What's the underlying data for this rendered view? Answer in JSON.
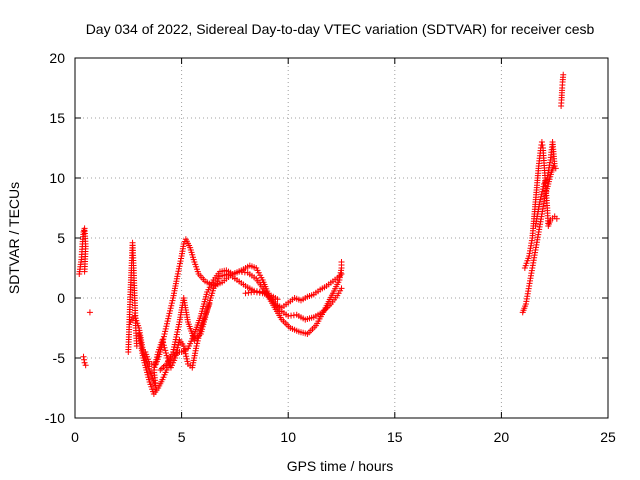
{
  "chart_data": {
    "type": "scatter",
    "title": "Day 034 of 2022, Sidereal Day-to-day VTEC variation (SDTVAR) for receiver cesb",
    "xlabel": "GPS time / hours",
    "ylabel": "SDTVAR / TECUs",
    "xlim": [
      0,
      25
    ],
    "ylim": [
      -10,
      20
    ],
    "xticks": [
      0,
      5,
      10,
      15,
      20,
      25
    ],
    "yticks": [
      -10,
      -5,
      0,
      5,
      10,
      15,
      20
    ],
    "xtick_labels": [
      "0",
      "5",
      "10",
      "15",
      "20",
      "25"
    ],
    "ytick_labels": [
      "-10",
      "-5",
      "0",
      "5",
      "10",
      "15",
      "20"
    ],
    "grid": true,
    "marker": "+",
    "color": "#ff0000",
    "series": [
      {
        "name": "SDTVAR",
        "traces": [
          [
            [
              0.2,
              2.0
            ],
            [
              0.3,
              3.2
            ],
            [
              0.35,
              4.5
            ],
            [
              0.4,
              5.5
            ],
            [
              0.45,
              5.8
            ],
            [
              0.5,
              4.3
            ],
            [
              0.45,
              2.2
            ]
          ],
          [
            [
              0.4,
              -4.9
            ],
            [
              0.45,
              -5.4
            ],
            [
              0.5,
              -5.6
            ]
          ],
          [
            [
              0.7,
              -1.2
            ]
          ],
          [
            [
              2.5,
              -4.5
            ],
            [
              2.55,
              -2.0
            ],
            [
              2.6,
              0.5
            ],
            [
              2.65,
              2.5
            ],
            [
              2.7,
              4.6
            ],
            [
              2.75,
              2.5
            ],
            [
              2.8,
              0.0
            ],
            [
              2.85,
              -2.5
            ],
            [
              2.9,
              -4.0
            ]
          ],
          [
            [
              2.6,
              -2.0
            ],
            [
              2.8,
              -1.5
            ],
            [
              3.0,
              -2.5
            ],
            [
              3.2,
              -4.5
            ],
            [
              3.4,
              -5.5
            ],
            [
              3.6,
              -6.5
            ],
            [
              3.8,
              -7.5
            ],
            [
              3.7,
              -6.0
            ],
            [
              3.9,
              -4.5
            ],
            [
              4.1,
              -3.5
            ],
            [
              4.3,
              -4.8
            ],
            [
              4.5,
              -5.8
            ],
            [
              4.7,
              -5.0
            ],
            [
              4.9,
              -3.5
            ],
            [
              5.1,
              -4.0
            ],
            [
              5.3,
              -5.5
            ],
            [
              5.5,
              -5.8
            ],
            [
              5.7,
              -4.0
            ],
            [
              5.9,
              -2.5
            ],
            [
              6.1,
              -1.5
            ],
            [
              6.3,
              -0.5
            ]
          ],
          [
            [
              3.0,
              -3.0
            ],
            [
              3.2,
              -5.0
            ],
            [
              3.5,
              -7.0
            ],
            [
              3.7,
              -8.0
            ],
            [
              3.9,
              -7.5
            ],
            [
              4.1,
              -6.8
            ],
            [
              4.3,
              -6.0
            ],
            [
              4.6,
              -5.0
            ],
            [
              4.8,
              -4.5
            ],
            [
              5.0,
              -4.5
            ],
            [
              5.3,
              -4.2
            ],
            [
              5.6,
              -3.0
            ],
            [
              5.9,
              -1.5
            ],
            [
              6.2,
              0.5
            ],
            [
              6.5,
              1.5
            ],
            [
              6.8,
              2.2
            ],
            [
              7.1,
              2.3
            ],
            [
              7.4,
              2.0
            ],
            [
              7.8,
              2.3
            ],
            [
              8.2,
              2.7
            ],
            [
              8.5,
              2.5
            ],
            [
              8.8,
              1.5
            ],
            [
              9.1,
              0.2
            ],
            [
              9.4,
              -0.5
            ],
            [
              9.7,
              -0.8
            ],
            [
              10.0,
              -0.4
            ],
            [
              10.3,
              0.0
            ],
            [
              10.6,
              -0.2
            ],
            [
              10.9,
              0.1
            ],
            [
              11.2,
              0.3
            ],
            [
              11.5,
              0.7
            ],
            [
              11.8,
              1.0
            ],
            [
              12.1,
              1.4
            ],
            [
              12.4,
              1.8
            ],
            [
              12.5,
              2.0
            ]
          ],
          [
            [
              3.3,
              -4.5
            ],
            [
              3.5,
              -5.5
            ],
            [
              3.8,
              -5.5
            ],
            [
              4.0,
              -4.5
            ],
            [
              4.2,
              -3.0
            ],
            [
              4.4,
              -1.5
            ],
            [
              4.6,
              0.0
            ],
            [
              4.8,
              1.8
            ],
            [
              5.0,
              3.5
            ],
            [
              5.1,
              4.5
            ],
            [
              5.2,
              4.9
            ],
            [
              5.4,
              4.2
            ],
            [
              5.6,
              3.0
            ],
            [
              5.8,
              2.0
            ],
            [
              6.1,
              1.4
            ],
            [
              6.5,
              1.0
            ],
            [
              6.9,
              1.3
            ],
            [
              7.3,
              1.9
            ],
            [
              7.7,
              2.2
            ],
            [
              8.1,
              2.1
            ],
            [
              8.5,
              1.6
            ],
            [
              8.9,
              0.6
            ],
            [
              9.3,
              -0.6
            ],
            [
              9.7,
              -1.8
            ],
            [
              10.1,
              -2.5
            ],
            [
              10.5,
              -2.8
            ],
            [
              10.9,
              -3.0
            ],
            [
              11.3,
              -2.3
            ],
            [
              11.7,
              -1.0
            ],
            [
              12.1,
              0.4
            ],
            [
              12.4,
              1.5
            ],
            [
              12.5,
              2.5
            ],
            [
              12.5,
              3.0
            ]
          ],
          [
            [
              4.0,
              -6.0
            ],
            [
              4.3,
              -5.5
            ],
            [
              4.6,
              -4.5
            ],
            [
              4.9,
              -2.0
            ],
            [
              5.1,
              0.0
            ],
            [
              5.3,
              -2.0
            ],
            [
              5.6,
              -3.5
            ],
            [
              5.9,
              -3.0
            ],
            [
              6.2,
              -1.0
            ],
            [
              6.5,
              0.8
            ],
            [
              6.8,
              1.8
            ],
            [
              7.2,
              2.0
            ],
            [
              7.6,
              1.5
            ],
            [
              8.0,
              1.0
            ],
            [
              8.4,
              0.6
            ],
            [
              8.8,
              0.5
            ],
            [
              9.2,
              0.0
            ],
            [
              9.6,
              -1.0
            ],
            [
              10.0,
              -1.5
            ],
            [
              10.4,
              -1.4
            ],
            [
              10.8,
              -1.8
            ],
            [
              11.2,
              -1.6
            ],
            [
              11.6,
              -1.2
            ],
            [
              12.0,
              -0.5
            ],
            [
              12.3,
              0.2
            ],
            [
              12.5,
              0.8
            ]
          ],
          [
            [
              8.0,
              0.4
            ],
            [
              8.4,
              0.5
            ],
            [
              8.8,
              0.4
            ],
            [
              9.2,
              0.2
            ],
            [
              9.5,
              -0.1
            ]
          ],
          [
            [
              21.0,
              -1.2
            ],
            [
              21.15,
              -0.5
            ],
            [
              21.3,
              1.0
            ],
            [
              21.45,
              2.5
            ],
            [
              21.6,
              4.0
            ],
            [
              21.75,
              5.5
            ],
            [
              21.9,
              7.0
            ],
            [
              22.05,
              8.5
            ],
            [
              22.2,
              9.5
            ],
            [
              22.35,
              10.5
            ],
            [
              22.45,
              11.0
            ],
            [
              22.55,
              10.8
            ]
          ],
          [
            [
              21.1,
              2.5
            ],
            [
              21.3,
              3.5
            ],
            [
              21.45,
              5.0
            ],
            [
              21.55,
              7.0
            ],
            [
              21.65,
              9.0
            ],
            [
              21.75,
              11.0
            ],
            [
              21.85,
              12.5
            ],
            [
              21.9,
              13.0
            ],
            [
              21.95,
              12.5
            ],
            [
              22.05,
              10.0
            ],
            [
              22.15,
              7.5
            ],
            [
              22.2,
              6.0
            ],
            [
              22.3,
              6.5
            ],
            [
              22.5,
              6.8
            ],
            [
              22.6,
              6.6
            ]
          ],
          [
            [
              21.6,
              6.0
            ],
            [
              21.8,
              8.0
            ],
            [
              22.0,
              9.5
            ],
            [
              22.15,
              10.0
            ],
            [
              22.3,
              11.5
            ],
            [
              22.4,
              13.0
            ],
            [
              22.5,
              11.0
            ]
          ],
          [
            [
              22.8,
              16.0
            ],
            [
              22.82,
              16.5
            ],
            [
              22.85,
              17.5
            ],
            [
              22.87,
              18.0
            ],
            [
              22.9,
              18.6
            ]
          ]
        ]
      }
    ]
  }
}
